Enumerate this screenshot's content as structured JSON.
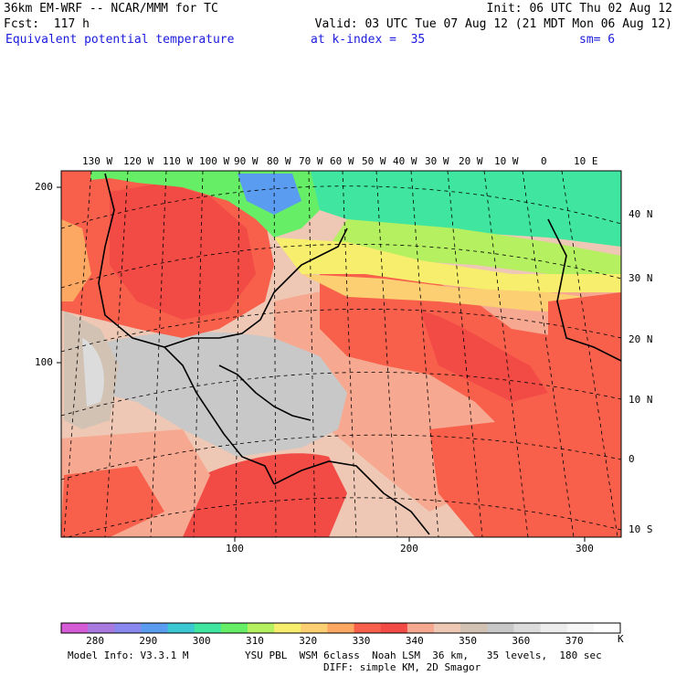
{
  "header": {
    "title": "36km EM-WRF -- NCAR/MMM for TC",
    "init": "Init: 06 UTC Thu 02 Aug 12",
    "fcst": "Fcst:  117 h",
    "valid": "Valid: 03 UTC Tue 07 Aug 12 (21 MDT Mon 06 Aug 12)",
    "field": "Equivalent potential temperature",
    "level": "at k-index =  35",
    "smooth": "sm= 6"
  },
  "map": {
    "top_lon_labels": [
      "130 W",
      "120 W",
      "110 W",
      "100 W",
      "90 W",
      "80 W",
      "70 W",
      "60 W",
      "50 W",
      "40 W",
      "30 W",
      "20 W",
      "10 W",
      "0",
      "10 E"
    ],
    "right_lat_labels": [
      "40 N",
      "30 N",
      "20 N",
      "10 N",
      "0",
      "10 S"
    ],
    "left_grid_labels": [
      "200",
      "100"
    ],
    "bottom_grid_labels": [
      "100",
      "200",
      "300"
    ]
  },
  "legend": {
    "unit": "K",
    "tick_labels": [
      "280",
      "290",
      "300",
      "310",
      "320",
      "330",
      "340",
      "350",
      "360",
      "370"
    ],
    "colors": [
      "#d65bd6",
      "#a87ae0",
      "#8888ee",
      "#5a9cf0",
      "#3cc8d2",
      "#40e6a0",
      "#66ee66",
      "#b4f060",
      "#f6ee6c",
      "#fccf72",
      "#fca862",
      "#f8604c",
      "#f24a44",
      "#f6a890",
      "#eec8b4",
      "#d2c2b4",
      "#c8c8c8",
      "#dcdcdc",
      "#ececec",
      "#f6f6f6",
      "#ffffff"
    ]
  },
  "footer": {
    "model_info": "Model Info: V3.3.1 M",
    "physics": "YSU PBL  WSM 6class  Noah LSM  36 km,   35 levels,  180 sec",
    "diff": "DIFF: simple KM, 2D Smagor"
  }
}
